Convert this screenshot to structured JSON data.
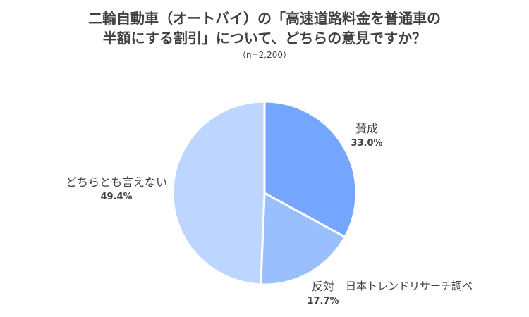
{
  "chart_data": {
    "type": "pie",
    "title_lines": [
      "二輪自動車（オートバイ）の「高速道路料金を普通車の",
      "半額にする割引」について、どちらの意見ですか？"
    ],
    "subtitle": "（n=2,200）",
    "slices": [
      {
        "name": "賛成",
        "value": 33.0,
        "label": "33.0%",
        "color": "#75a6ff"
      },
      {
        "name": "反対",
        "value": 17.7,
        "label": "17.7%",
        "color": "#99bfff"
      },
      {
        "name": "どちらとも言えない",
        "value": 49.4,
        "label": "49.4%",
        "color": "#bcd6ff"
      }
    ],
    "start_angle": "12 o'clock",
    "direction": "clockwise",
    "legend": "none",
    "source": "日本トレンドリサーチ調べ"
  }
}
